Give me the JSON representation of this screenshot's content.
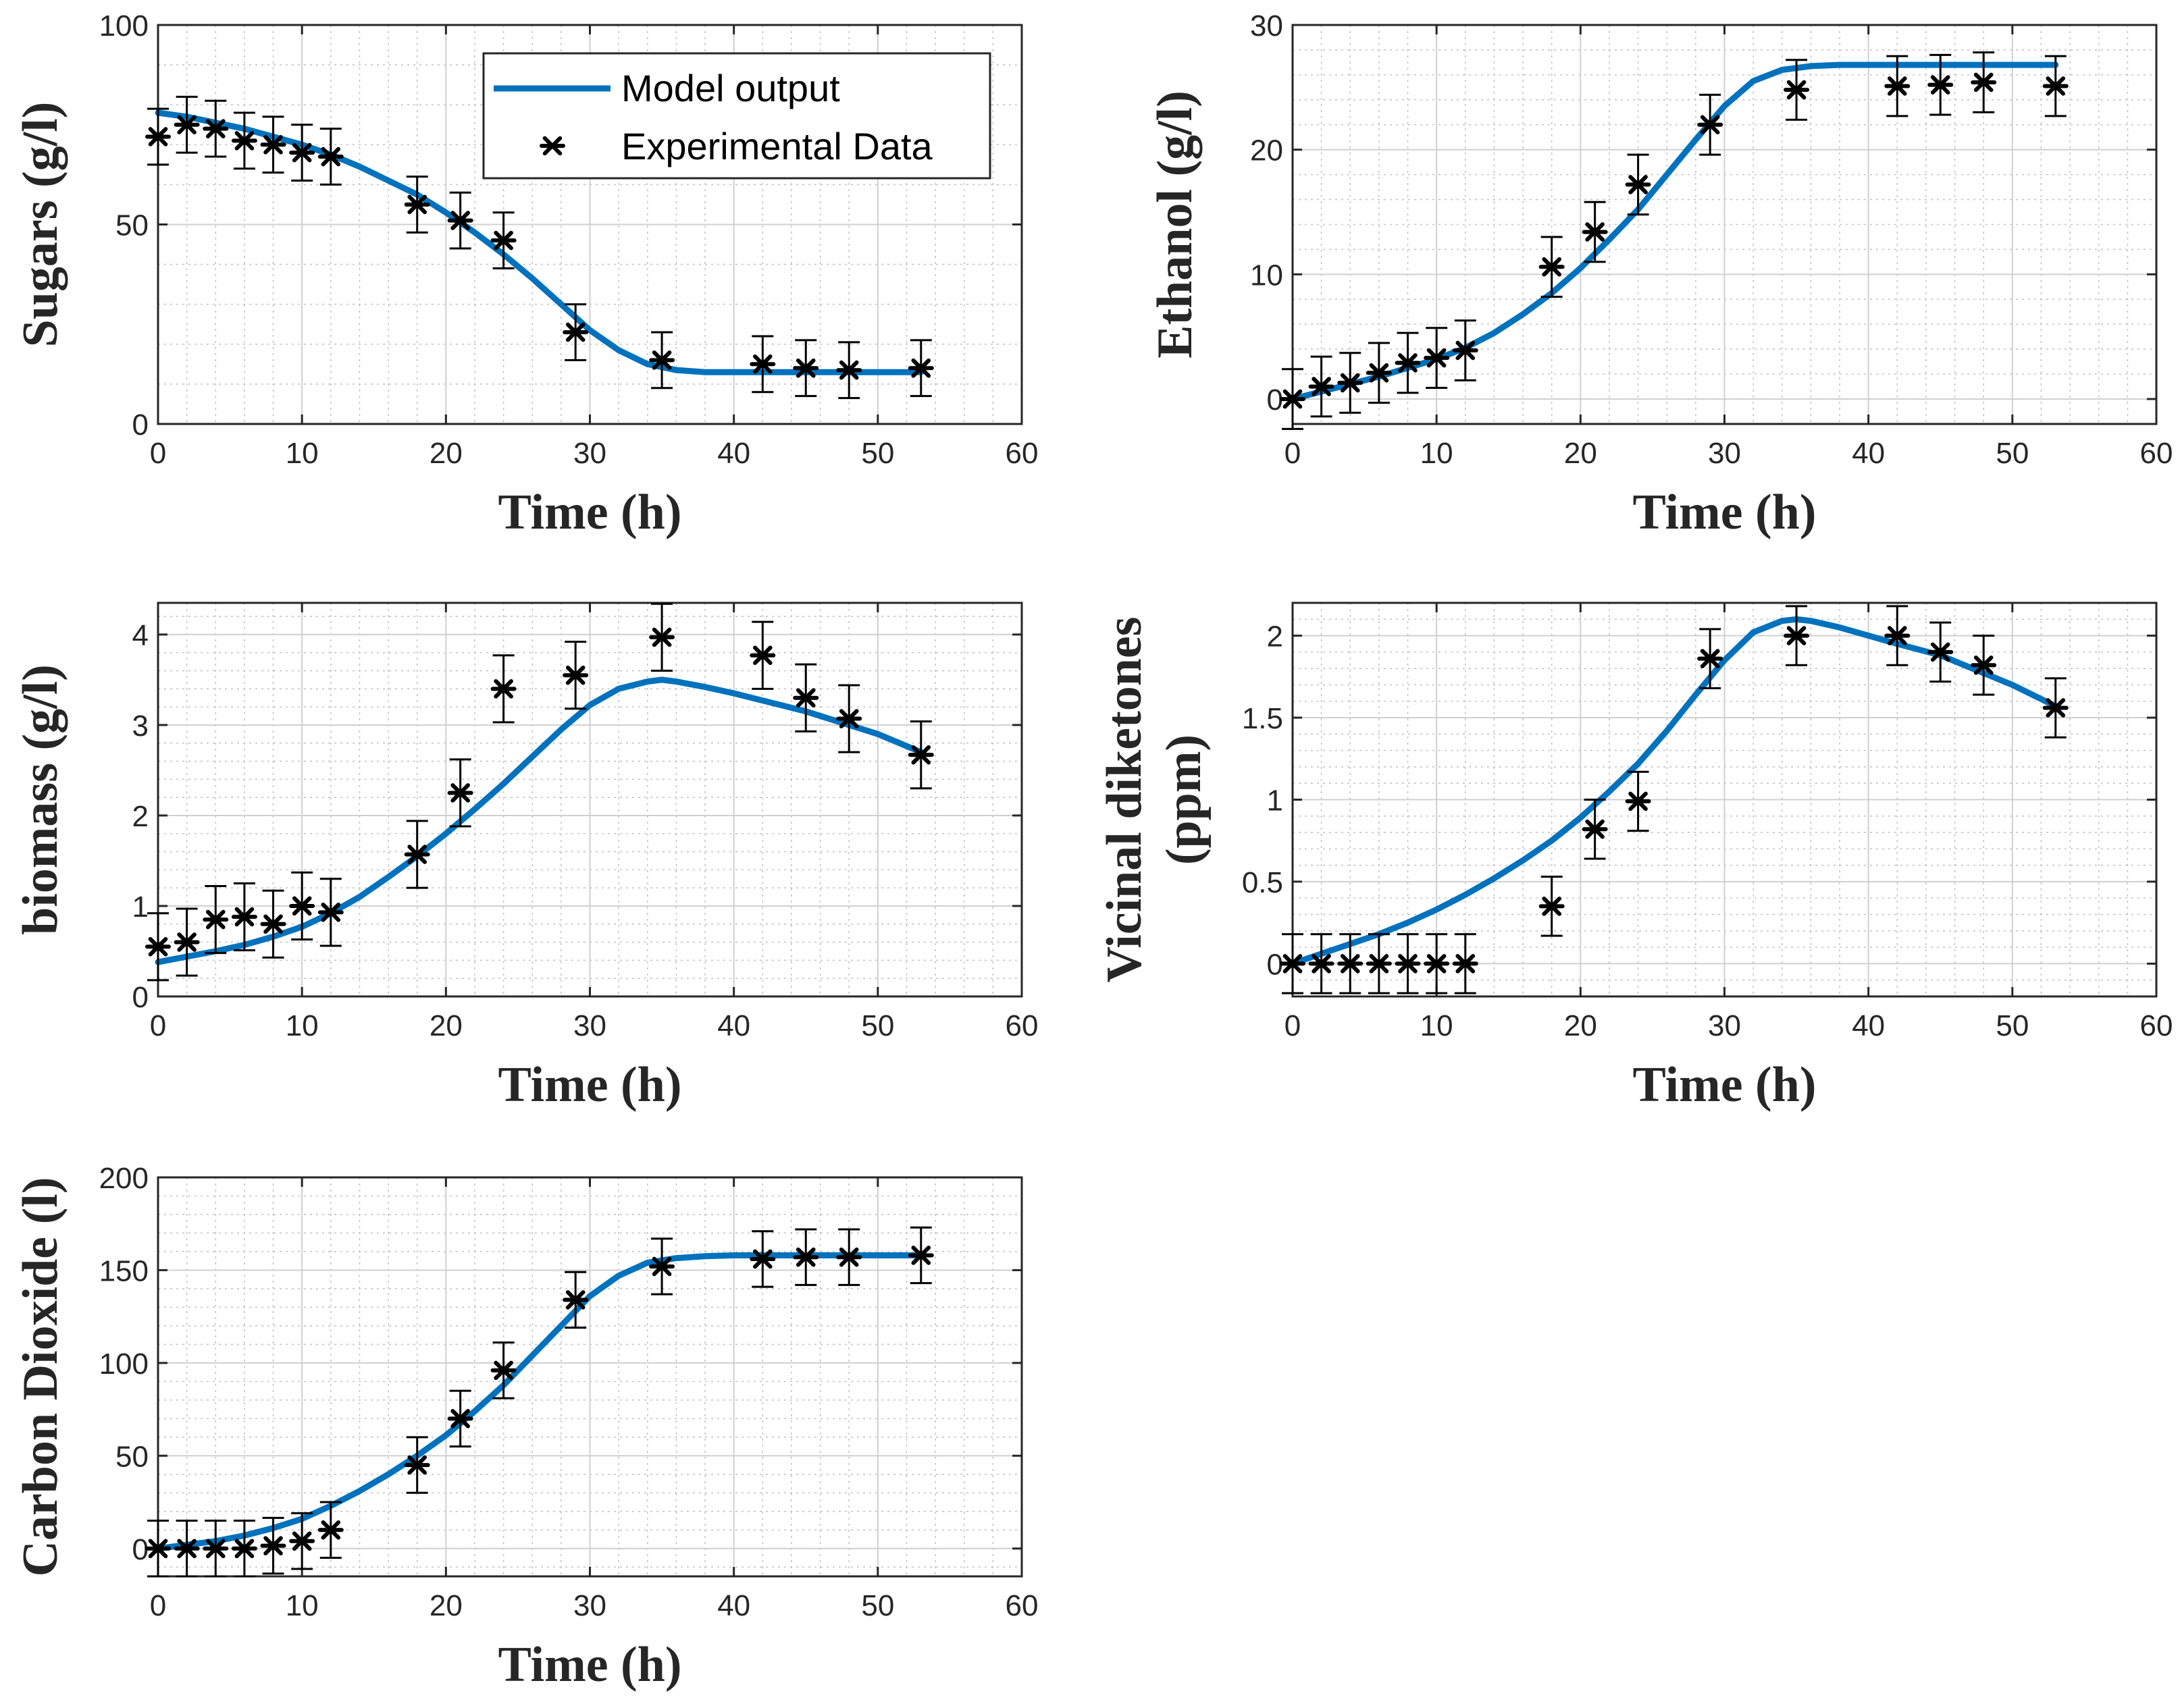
{
  "figure": {
    "legend": {
      "model_label": "Model output",
      "data_label": "Experimental Data",
      "colors": {
        "model": "#0072BD",
        "data": "#000000"
      }
    }
  },
  "chart_data": [
    {
      "id": "sugars",
      "type": "line",
      "xlabel": "Time (h)",
      "ylabel": [
        "Sugars (g/l)"
      ],
      "xlim": [
        0,
        60
      ],
      "ylim": [
        0,
        100
      ],
      "xticks": [
        0,
        10,
        20,
        30,
        40,
        50,
        60
      ],
      "yticks": [
        0,
        50,
        100
      ],
      "ytick_labels": [
        "0",
        "50",
        "100"
      ],
      "grid": true,
      "legend": "top-right",
      "series": [
        {
          "name": "Model output",
          "kind": "line",
          "x": [
            0,
            2,
            4,
            6,
            8,
            10,
            12,
            14,
            16,
            18,
            20,
            22,
            24,
            26,
            28,
            30,
            32,
            34,
            36,
            38,
            40,
            45,
            50,
            53
          ],
          "y": [
            78,
            77,
            75.5,
            74,
            72,
            70,
            67.5,
            64.5,
            61,
            57.5,
            53,
            48,
            42.5,
            36.5,
            30,
            23.5,
            18.5,
            15,
            13.5,
            13,
            13,
            13,
            13,
            13
          ]
        },
        {
          "name": "Experimental Data",
          "kind": "points",
          "x": [
            0,
            2,
            4,
            6,
            8,
            10,
            12,
            18,
            21,
            24,
            29,
            35,
            42,
            45,
            48,
            53
          ],
          "y": [
            72,
            75,
            74,
            71,
            70,
            68,
            67,
            55,
            51,
            46,
            23,
            16,
            15,
            14,
            13.5,
            14
          ],
          "err": [
            7,
            7,
            7,
            7,
            7,
            7,
            7,
            7,
            7,
            7,
            7,
            7,
            7,
            7,
            7,
            7
          ]
        }
      ]
    },
    {
      "id": "ethanol",
      "type": "line",
      "xlabel": "Time (h)",
      "ylabel": [
        "Ethanol (g/l)"
      ],
      "xlim": [
        0,
        60
      ],
      "ylim": [
        -2,
        30
      ],
      "xticks": [
        0,
        10,
        20,
        30,
        40,
        50,
        60
      ],
      "yticks": [
        0,
        10,
        20,
        30
      ],
      "ytick_labels": [
        "0",
        "10",
        "20",
        "30"
      ],
      "grid": true,
      "series": [
        {
          "name": "Model output",
          "kind": "line",
          "x": [
            0,
            2,
            4,
            6,
            8,
            10,
            12,
            14,
            16,
            18,
            20,
            22,
            24,
            26,
            28,
            30,
            32,
            34,
            36,
            38,
            40,
            45,
            50,
            53
          ],
          "y": [
            0,
            0.6,
            1.2,
            1.8,
            2.5,
            3.2,
            4.1,
            5.3,
            6.8,
            8.5,
            10.5,
            12.8,
            15.2,
            18,
            20.8,
            23.5,
            25.5,
            26.4,
            26.7,
            26.8,
            26.8,
            26.8,
            26.8,
            26.8
          ]
        },
        {
          "name": "Experimental Data",
          "kind": "points",
          "x": [
            0,
            2,
            4,
            6,
            8,
            10,
            12,
            18,
            21,
            24,
            29,
            35,
            42,
            45,
            48,
            53
          ],
          "y": [
            0,
            1,
            1.3,
            2.1,
            2.9,
            3.3,
            3.9,
            10.6,
            13.4,
            17.2,
            22,
            24.8,
            25.1,
            25.2,
            25.4,
            25.1
          ],
          "err": [
            2.4,
            2.4,
            2.4,
            2.4,
            2.4,
            2.4,
            2.4,
            2.4,
            2.4,
            2.4,
            2.4,
            2.4,
            2.4,
            2.4,
            2.4,
            2.4
          ]
        }
      ]
    },
    {
      "id": "biomass",
      "type": "line",
      "xlabel": "Time (h)",
      "ylabel": [
        "biomass (g/l)"
      ],
      "xlim": [
        0,
        60
      ],
      "ylim": [
        0,
        4.35
      ],
      "xticks": [
        0,
        10,
        20,
        30,
        40,
        50,
        60
      ],
      "yticks": [
        0,
        1,
        2,
        3,
        4
      ],
      "ytick_labels": [
        "0",
        "1",
        "2",
        "3",
        "4"
      ],
      "grid": true,
      "series": [
        {
          "name": "Model output",
          "kind": "line",
          "x": [
            0,
            2,
            4,
            6,
            8,
            10,
            12,
            14,
            16,
            18,
            20,
            22,
            24,
            26,
            28,
            30,
            32,
            34,
            35,
            36,
            38,
            40,
            45,
            50,
            53
          ],
          "y": [
            0.38,
            0.44,
            0.5,
            0.57,
            0.66,
            0.77,
            0.92,
            1.1,
            1.32,
            1.55,
            1.8,
            2.07,
            2.35,
            2.65,
            2.95,
            3.22,
            3.4,
            3.48,
            3.5,
            3.48,
            3.42,
            3.35,
            3.15,
            2.9,
            2.7
          ]
        },
        {
          "name": "Experimental Data",
          "kind": "points",
          "x": [
            0,
            2,
            4,
            6,
            8,
            10,
            12,
            18,
            21,
            24,
            29,
            35,
            42,
            45,
            48,
            53
          ],
          "y": [
            0.55,
            0.6,
            0.85,
            0.88,
            0.8,
            1.0,
            0.93,
            1.57,
            2.25,
            3.4,
            3.55,
            3.97,
            3.77,
            3.3,
            3.07,
            2.67
          ],
          "err": [
            0.37,
            0.37,
            0.37,
            0.37,
            0.37,
            0.37,
            0.37,
            0.37,
            0.37,
            0.37,
            0.37,
            0.37,
            0.37,
            0.37,
            0.37,
            0.37
          ]
        }
      ]
    },
    {
      "id": "vicinal",
      "type": "line",
      "xlabel": "Time (h)",
      "ylabel": [
        "Vicinal diketones",
        "(ppm)"
      ],
      "xlim": [
        0,
        60
      ],
      "ylim": [
        -0.2,
        2.2
      ],
      "xticks": [
        0,
        10,
        20,
        30,
        40,
        50,
        60
      ],
      "yticks": [
        0,
        0.5,
        1,
        1.5,
        2
      ],
      "ytick_labels": [
        "0",
        "0.5",
        "1",
        "1.5",
        "2"
      ],
      "grid": true,
      "series": [
        {
          "name": "Model output",
          "kind": "line",
          "x": [
            0,
            2,
            4,
            6,
            8,
            10,
            12,
            14,
            16,
            18,
            20,
            22,
            24,
            26,
            28,
            30,
            32,
            34,
            35,
            36,
            38,
            40,
            42,
            45,
            50,
            53
          ],
          "y": [
            0,
            0.06,
            0.12,
            0.18,
            0.25,
            0.33,
            0.42,
            0.52,
            0.63,
            0.75,
            0.89,
            1.05,
            1.22,
            1.42,
            1.64,
            1.85,
            2.02,
            2.09,
            2.1,
            2.09,
            2.05,
            2.0,
            1.95,
            1.88,
            1.7,
            1.57
          ]
        },
        {
          "name": "Experimental Data",
          "kind": "points",
          "x": [
            0,
            2,
            4,
            6,
            8,
            10,
            12,
            18,
            21,
            24,
            29,
            35,
            42,
            45,
            48,
            53
          ],
          "y": [
            0,
            0,
            0,
            0,
            0,
            0,
            0,
            0.35,
            0.82,
            0.99,
            1.86,
            2.0,
            2.0,
            1.9,
            1.82,
            1.56
          ],
          "err": [
            0.18,
            0.18,
            0.18,
            0.18,
            0.18,
            0.18,
            0.18,
            0.18,
            0.18,
            0.18,
            0.18,
            0.18,
            0.18,
            0.18,
            0.18,
            0.18
          ]
        }
      ]
    },
    {
      "id": "co2",
      "type": "line",
      "xlabel": "Time (h)",
      "ylabel": [
        "Carbon Dioxide (l)"
      ],
      "xlim": [
        0,
        60
      ],
      "ylim": [
        -15,
        200
      ],
      "xticks": [
        0,
        10,
        20,
        30,
        40,
        50,
        60
      ],
      "yticks": [
        0,
        50,
        100,
        150,
        200
      ],
      "ytick_labels": [
        "0",
        "50",
        "100",
        "150",
        "200"
      ],
      "grid": true,
      "series": [
        {
          "name": "Model output",
          "kind": "line",
          "x": [
            0,
            2,
            4,
            6,
            8,
            10,
            12,
            14,
            16,
            18,
            20,
            22,
            24,
            26,
            28,
            30,
            32,
            34,
            36,
            38,
            40,
            45,
            50,
            53
          ],
          "y": [
            0,
            2,
            4,
            7,
            11,
            16,
            23,
            31,
            40,
            50,
            61,
            74,
            88,
            104,
            120,
            136,
            147,
            154,
            156.5,
            157.5,
            158,
            158,
            158,
            158
          ]
        },
        {
          "name": "Experimental Data",
          "kind": "points",
          "x": [
            0,
            2,
            4,
            6,
            8,
            10,
            12,
            18,
            21,
            24,
            29,
            35,
            42,
            45,
            48,
            53
          ],
          "y": [
            0,
            0,
            0,
            0,
            1.5,
            4,
            10,
            45,
            70,
            96,
            134,
            152,
            156,
            157,
            157,
            158
          ],
          "err": [
            15,
            15,
            15,
            15,
            15,
            15,
            15,
            15,
            15,
            15,
            15,
            15,
            15,
            15,
            15,
            15
          ]
        }
      ]
    }
  ]
}
